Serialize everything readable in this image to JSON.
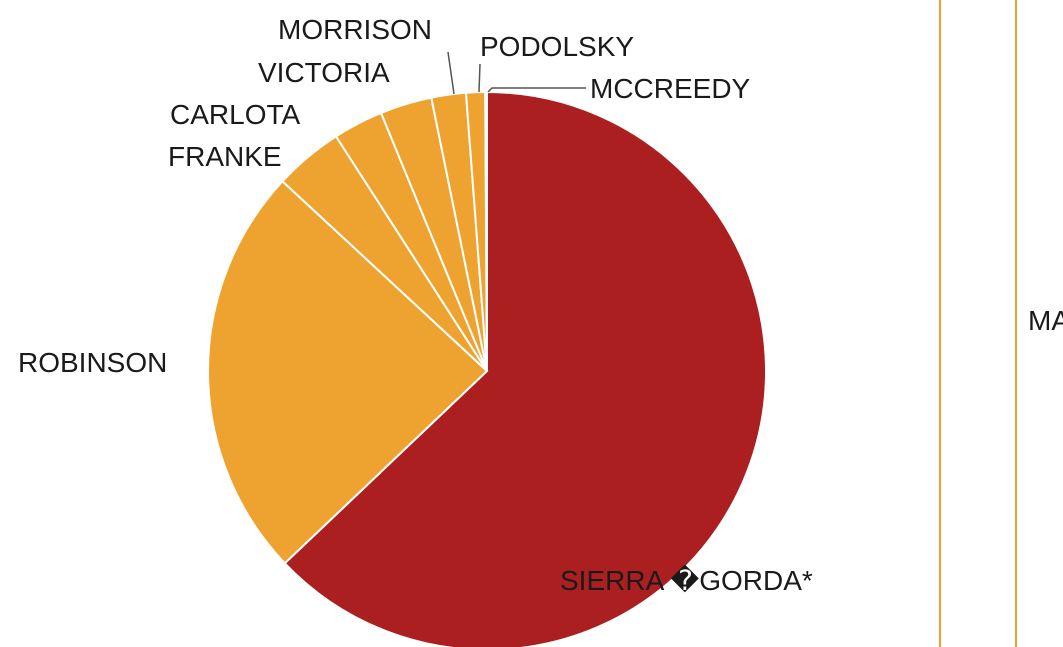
{
  "chart_data": {
    "type": "pie",
    "categories": [
      "SIERRA �GORDA*",
      "ROBINSON",
      "FRANKE",
      "CARLOTA",
      "VICTORIA",
      "MORRISON",
      "PODOLSKY",
      "MCCREEDY"
    ],
    "values": [
      62.9,
      24.0,
      4.0,
      2.9,
      3.0,
      2.0,
      1.1,
      0.1
    ],
    "colors": [
      "#ab1f21",
      "#eea331",
      "#eea331",
      "#eea331",
      "#eea331",
      "#eea331",
      "#eea331",
      "#eea331"
    ],
    "title": "",
    "legend": "none"
  },
  "clipped_label": "MA",
  "rule_color": "#eea331"
}
